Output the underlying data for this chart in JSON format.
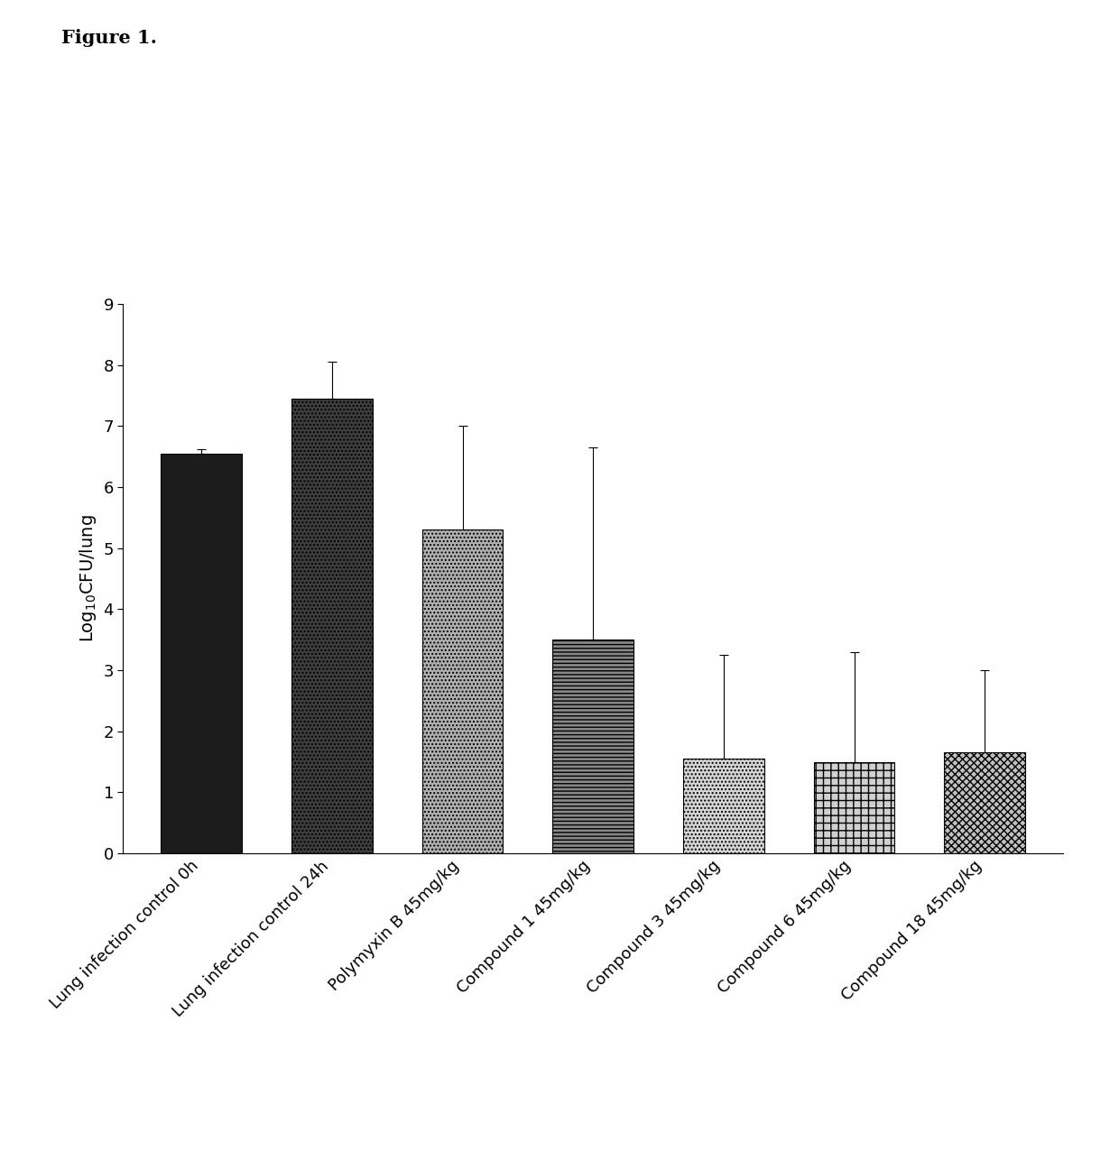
{
  "categories": [
    "Lung infection control 0h",
    "Lung infection control 24h",
    "Polymyxin B 45mg/kg",
    "Compound 1 45mg/kg",
    "Compound 3 45mg/kg",
    "Compound 6 45mg/kg",
    "Compound 18 45mg/kg"
  ],
  "values": [
    6.55,
    7.45,
    5.3,
    3.5,
    1.55,
    1.5,
    1.65
  ],
  "errors": [
    0.07,
    0.6,
    1.7,
    3.15,
    1.7,
    1.8,
    1.35
  ],
  "ylabel": "Log$_{10}$CFU/lung",
  "ylim": [
    0,
    9
  ],
  "yticks": [
    0,
    1,
    2,
    3,
    4,
    5,
    6,
    7,
    8,
    9
  ],
  "figure_title": "Figure 1.",
  "title_fontsize": 15,
  "label_fontsize": 14,
  "tick_fontsize": 13,
  "bar_width": 0.62,
  "background_color": "#ffffff",
  "figure_width": 12.4,
  "figure_height": 12.96
}
